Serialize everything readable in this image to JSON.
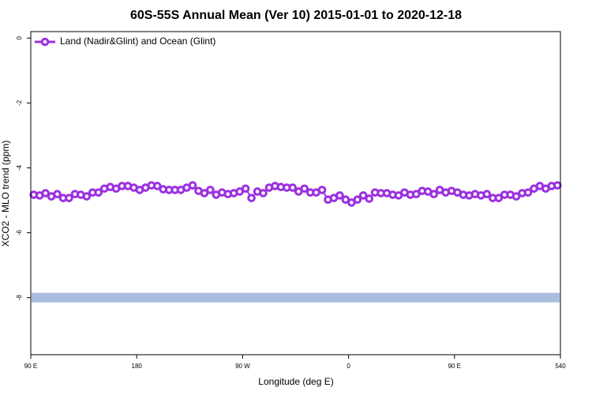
{
  "chart_data": {
    "type": "line",
    "title": "60S-55S Annual Mean (Ver 10)   2015-01-01 to 2020-12-18",
    "x_label": "Longitude (deg E)",
    "y_label": "XCO2 - MLO trend (ppm)",
    "xlim": [
      90,
      540
    ],
    "xticks": [
      {
        "value": 90,
        "label": "90 E"
      },
      180,
      {
        "value": 270,
        "label": "90 W"
      },
      {
        "value": 360,
        "label": "0"
      },
      {
        "value": 450,
        "label": "90 E"
      },
      540
    ],
    "ylim": [
      -9.76,
      0.2
    ],
    "yticks": [
      0,
      -2,
      -4,
      -6,
      -8
    ],
    "legend": "top-left",
    "band": {
      "y": -8,
      "color": "#a9bede"
    },
    "x": [
      92.5,
      97.5,
      102.5,
      107.5,
      112.5,
      117.5,
      122.5,
      127.5,
      132.5,
      137.5,
      142.5,
      147.5,
      152.5,
      157.5,
      162.5,
      167.5,
      172.5,
      177.5,
      182.5,
      187.5,
      192.5,
      197.5,
      202.5,
      207.5,
      212.5,
      217.5,
      222.5,
      227.5,
      232.5,
      237.5,
      242.5,
      247.5,
      252.5,
      257.5,
      262.5,
      267.5,
      272.5,
      277.5,
      282.5,
      287.5,
      292.5,
      297.5,
      302.5,
      307.5,
      312.5,
      317.5,
      322.5,
      327.5,
      332.5,
      337.5,
      342.5,
      347.5,
      352.5,
      357.5,
      362.5,
      367.5,
      372.5,
      377.5,
      382.5,
      387.5,
      392.5,
      397.5,
      402.5,
      407.5,
      412.5,
      417.5,
      422.5,
      427.5,
      432.5,
      437.5,
      442.5,
      447.5,
      452.5,
      457.5,
      462.5,
      467.5,
      472.5,
      477.5,
      482.5,
      487.5,
      492.5,
      497.5,
      502.5,
      507.5,
      512.5,
      517.5,
      522.5,
      527.5,
      532.5,
      537.5
    ],
    "series": [
      {
        "name": "Land (Nadir&Glint) and Ocean (Glint)",
        "color": "#9b30e0",
        "values": [
          -4.83,
          -4.85,
          -4.78,
          -4.88,
          -4.81,
          -4.93,
          -4.93,
          -4.81,
          -4.83,
          -4.88,
          -4.76,
          -4.76,
          -4.64,
          -4.59,
          -4.64,
          -4.56,
          -4.56,
          -4.61,
          -4.68,
          -4.61,
          -4.54,
          -4.56,
          -4.66,
          -4.68,
          -4.68,
          -4.68,
          -4.61,
          -4.54,
          -4.71,
          -4.78,
          -4.68,
          -4.83,
          -4.76,
          -4.81,
          -4.78,
          -4.73,
          -4.64,
          -4.93,
          -4.73,
          -4.78,
          -4.61,
          -4.56,
          -4.59,
          -4.61,
          -4.61,
          -4.73,
          -4.64,
          -4.76,
          -4.76,
          -4.68,
          -4.98,
          -4.93,
          -4.85,
          -4.98,
          -5.07,
          -4.98,
          -4.85,
          -4.95,
          -4.76,
          -4.78,
          -4.78,
          -4.83,
          -4.85,
          -4.76,
          -4.83,
          -4.81,
          -4.71,
          -4.73,
          -4.81,
          -4.68,
          -4.76,
          -4.71,
          -4.76,
          -4.83,
          -4.85,
          -4.81,
          -4.85,
          -4.81,
          -4.93,
          -4.93,
          -4.83,
          -4.83,
          -4.88,
          -4.78,
          -4.76,
          -4.64,
          -4.56,
          -4.64,
          -4.56,
          -4.54
        ]
      }
    ]
  }
}
